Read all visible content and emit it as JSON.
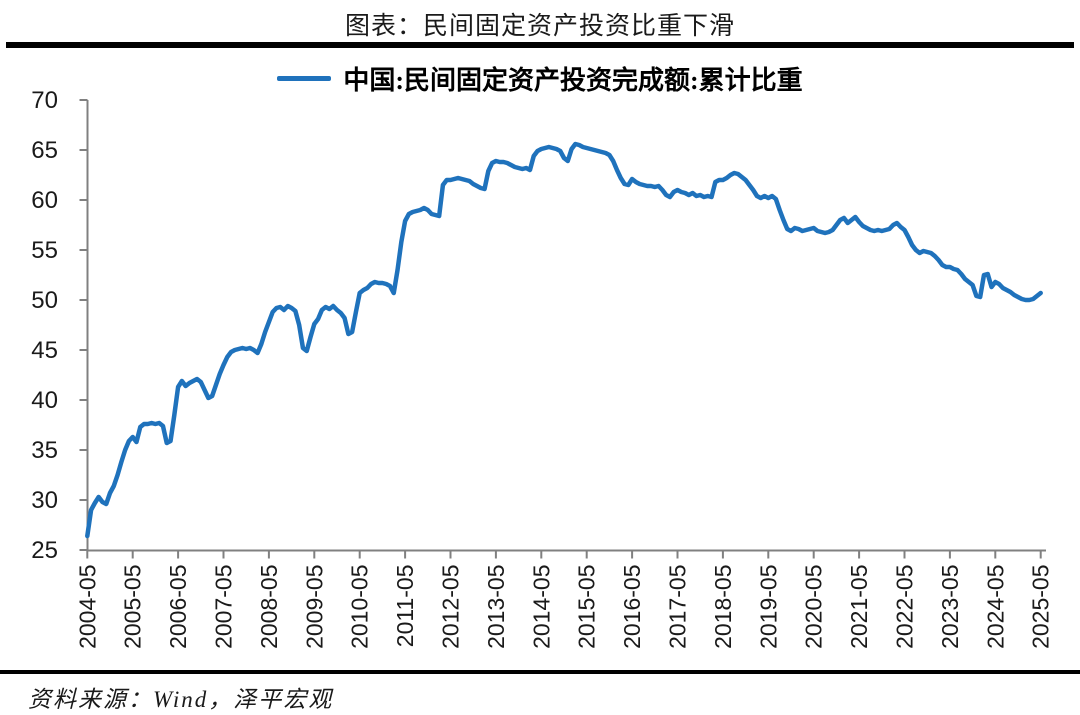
{
  "page": {
    "title": "图表：民间固定资产投资比重下滑",
    "source": "资料来源：Wind，泽平宏观"
  },
  "legend": {
    "label": "中国:民间固定资产投资完成额:累计比重"
  },
  "colors": {
    "line": "#1F72BC",
    "axis": "#808080",
    "rule": "#000000",
    "text": "#1A1A1A"
  },
  "chart_data": {
    "type": "line",
    "title": "图表：民间固定资产投资比重下滑",
    "ylabel": "",
    "xlabel": "",
    "ylim": [
      25,
      70
    ],
    "y_ticks": [
      25,
      30,
      35,
      40,
      45,
      50,
      55,
      60,
      65,
      70
    ],
    "grid": false,
    "legend_position": "top-center",
    "x_tick_labels": [
      "2004-05",
      "2005-05",
      "2006-05",
      "2007-05",
      "2008-05",
      "2009-05",
      "2010-05",
      "2011-05",
      "2012-05",
      "2013-05",
      "2014-05",
      "2015-05",
      "2016-05",
      "2017-05",
      "2018-05",
      "2019-05",
      "2020-05",
      "2021-05",
      "2022-05",
      "2023-05",
      "2024-05",
      "2025-05"
    ],
    "series": [
      {
        "name": "中国:民间固定资产投资完成额:累计比重",
        "unit": "%",
        "frequency": "monthly",
        "start": "2004-05",
        "end": "2025-05",
        "values": [
          26.4,
          29.0,
          29.7,
          30.3,
          29.8,
          29.6,
          30.7,
          31.4,
          32.5,
          33.8,
          35.0,
          35.9,
          36.3,
          35.8,
          37.3,
          37.6,
          37.6,
          37.7,
          37.6,
          37.7,
          37.4,
          35.7,
          35.9,
          38.5,
          41.3,
          41.9,
          41.4,
          41.7,
          41.9,
          42.1,
          41.8,
          41.0,
          40.2,
          40.4,
          41.5,
          42.6,
          43.5,
          44.3,
          44.8,
          45.0,
          45.1,
          45.2,
          45.1,
          45.2,
          45.0,
          44.7,
          45.6,
          46.8,
          47.8,
          48.8,
          49.2,
          49.3,
          49.0,
          49.4,
          49.2,
          48.9,
          47.5,
          45.2,
          44.9,
          46.3,
          47.6,
          48.1,
          49.0,
          49.3,
          49.1,
          49.4,
          49.0,
          48.7,
          48.2,
          46.6,
          46.8,
          48.8,
          50.7,
          51.0,
          51.2,
          51.6,
          51.8,
          51.7,
          51.7,
          51.6,
          51.4,
          50.7,
          53.0,
          55.8,
          57.9,
          58.6,
          58.8,
          58.9,
          59.0,
          59.2,
          59.0,
          58.6,
          58.5,
          58.4,
          61.5,
          62.0,
          62.0,
          62.1,
          62.2,
          62.1,
          62.0,
          61.9,
          61.6,
          61.4,
          61.2,
          61.1,
          62.9,
          63.7,
          63.9,
          63.8,
          63.8,
          63.7,
          63.5,
          63.3,
          63.2,
          63.1,
          63.2,
          63.0,
          64.4,
          64.9,
          65.1,
          65.2,
          65.3,
          65.2,
          65.1,
          64.9,
          64.2,
          63.9,
          65.1,
          65.6,
          65.5,
          65.3,
          65.2,
          65.1,
          65.0,
          64.9,
          64.8,
          64.7,
          64.5,
          63.9,
          63.0,
          62.2,
          61.6,
          61.5,
          62.1,
          61.8,
          61.6,
          61.5,
          61.4,
          61.4,
          61.3,
          61.4,
          61.0,
          60.5,
          60.3,
          60.8,
          61.0,
          60.8,
          60.7,
          60.5,
          60.7,
          60.4,
          60.5,
          60.3,
          60.4,
          60.3,
          61.8,
          62.0,
          62.0,
          62.2,
          62.5,
          62.7,
          62.6,
          62.3,
          62.0,
          61.5,
          61.0,
          60.4,
          60.2,
          60.4,
          60.2,
          60.4,
          60.1,
          59.0,
          58.0,
          57.1,
          56.9,
          57.2,
          57.1,
          56.9,
          57.0,
          57.1,
          57.2,
          56.9,
          56.8,
          56.7,
          56.8,
          57.0,
          57.5,
          58.0,
          58.2,
          57.7,
          58.0,
          58.3,
          57.8,
          57.4,
          57.2,
          57.0,
          56.9,
          57.0,
          56.9,
          57.0,
          57.1,
          57.5,
          57.7,
          57.3,
          57.0,
          56.3,
          55.5,
          55.0,
          54.7,
          54.9,
          54.8,
          54.7,
          54.4,
          54.0,
          53.5,
          53.3,
          53.3,
          53.1,
          53.0,
          52.6,
          52.1,
          51.8,
          51.5,
          50.4,
          50.3,
          52.5,
          52.6,
          51.3,
          51.8,
          51.6,
          51.2,
          51.0,
          50.8,
          50.5,
          50.3,
          50.1,
          50.0,
          50.0,
          50.1,
          50.4,
          50.7
        ]
      }
    ]
  }
}
